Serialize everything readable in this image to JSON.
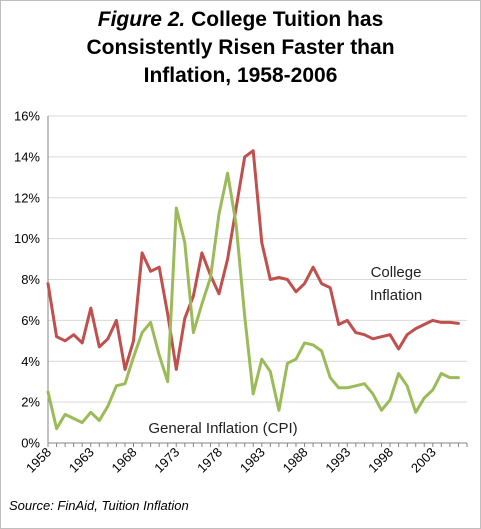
{
  "chart_data": {
    "type": "line",
    "title_prefix": "Figure 2.",
    "title": "College Tuition has Consistently Risen Faster than Inflation, 1958-2006",
    "source": "Source: FinAid, Tuition Inflation",
    "x_tick_labels": [
      "1958",
      "1963",
      "1968",
      "1973",
      "1978",
      "1983",
      "1988",
      "1993",
      "1998",
      "2003"
    ],
    "y_tick_labels": [
      "0%",
      "2%",
      "4%",
      "6%",
      "8%",
      "10%",
      "12%",
      "14%",
      "16%"
    ],
    "ylim": [
      0,
      16
    ],
    "xlim": [
      1958,
      2007
    ],
    "x": [
      1958,
      1959,
      1960,
      1961,
      1962,
      1963,
      1964,
      1965,
      1966,
      1967,
      1968,
      1969,
      1970,
      1971,
      1972,
      1973,
      1974,
      1975,
      1976,
      1977,
      1978,
      1979,
      1980,
      1981,
      1982,
      1983,
      1984,
      1985,
      1986,
      1987,
      1988,
      1989,
      1990,
      1991,
      1992,
      1993,
      1994,
      1995,
      1996,
      1997,
      1998,
      1999,
      2000,
      2001,
      2002,
      2003,
      2004,
      2005,
      2006
    ],
    "series": [
      {
        "name": "College Inflation",
        "color": "#c0504d",
        "values": [
          7.8,
          5.2,
          5.0,
          5.3,
          4.9,
          6.6,
          4.7,
          5.1,
          6.0,
          3.6,
          5.0,
          9.3,
          8.4,
          8.6,
          6.3,
          3.6,
          6.1,
          7.2,
          9.3,
          8.2,
          7.3,
          9.0,
          11.5,
          14.0,
          14.3,
          9.8,
          8.0,
          8.1,
          8.0,
          7.4,
          7.8,
          8.6,
          7.8,
          7.6,
          5.8,
          6.0,
          5.4,
          5.3,
          5.1,
          5.2,
          5.3,
          4.6,
          5.3,
          5.6,
          5.8,
          6.0,
          5.9,
          5.9,
          5.85
        ],
        "label_line1": "College",
        "label_line2": "Inflation"
      },
      {
        "name": "General Inflation (CPI)",
        "color": "#9bbb59",
        "values": [
          2.5,
          0.7,
          1.4,
          1.2,
          1.0,
          1.5,
          1.1,
          1.8,
          2.8,
          2.9,
          4.2,
          5.4,
          5.9,
          4.3,
          3.0,
          11.5,
          9.8,
          5.4,
          6.8,
          8.1,
          11.2,
          13.2,
          10.7,
          6.2,
          2.4,
          4.1,
          3.5,
          1.6,
          3.9,
          4.1,
          4.9,
          4.8,
          4.5,
          3.2,
          2.7,
          2.7,
          2.8,
          2.9,
          2.4,
          1.6,
          2.1,
          3.4,
          2.8,
          1.5,
          2.2,
          2.6,
          3.4,
          3.2,
          3.2
        ],
        "label": "General Inflation (CPI)"
      }
    ],
    "grid": "horizontal"
  }
}
